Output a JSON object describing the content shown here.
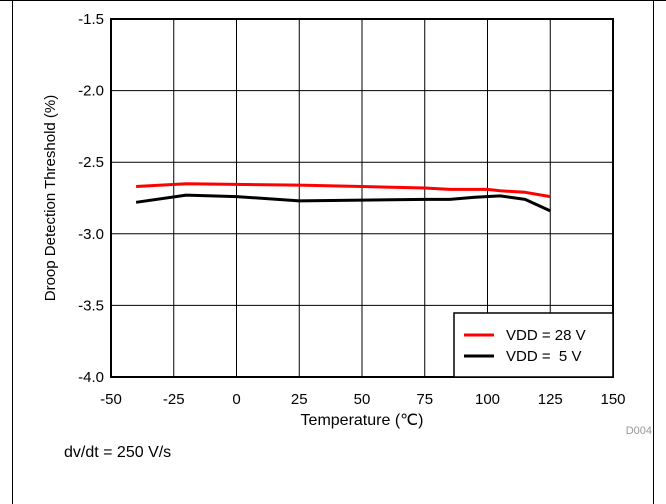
{
  "chart_data": {
    "type": "line",
    "xlabel": "Temperature  (℃)",
    "ylabel": "Droop Detection Threshold  (%)",
    "xlim": [
      -50,
      150
    ],
    "ylim": [
      -4.0,
      -1.5
    ],
    "xticks": [
      "-50",
      "-25",
      "0",
      "25",
      "50",
      "75",
      "100",
      "125",
      "150"
    ],
    "yticks": [
      "-1.5",
      "-2.0",
      "-2.5",
      "-3.0",
      "-3.5",
      "-4.0"
    ],
    "grid": true,
    "legend_position": "bottom-right",
    "series": [
      {
        "name": "VDD = 28 V",
        "color": "#ff0000",
        "x": [
          -40,
          -20,
          0,
          25,
          50,
          75,
          85,
          100,
          105,
          115,
          125
        ],
        "y": [
          -2.67,
          -2.65,
          -2.655,
          -2.66,
          -2.67,
          -2.68,
          -2.69,
          -2.69,
          -2.7,
          -2.71,
          -2.74
        ]
      },
      {
        "name": "VDD =  5 V",
        "color": "#000000",
        "x": [
          -40,
          -20,
          0,
          25,
          50,
          75,
          85,
          95,
          105,
          115,
          125
        ],
        "y": [
          -2.78,
          -2.73,
          -2.74,
          -2.77,
          -2.765,
          -2.76,
          -2.76,
          -2.745,
          -2.735,
          -2.76,
          -2.84
        ]
      }
    ],
    "watermark": "D004"
  },
  "note": "dv/dt = 250 V/s"
}
